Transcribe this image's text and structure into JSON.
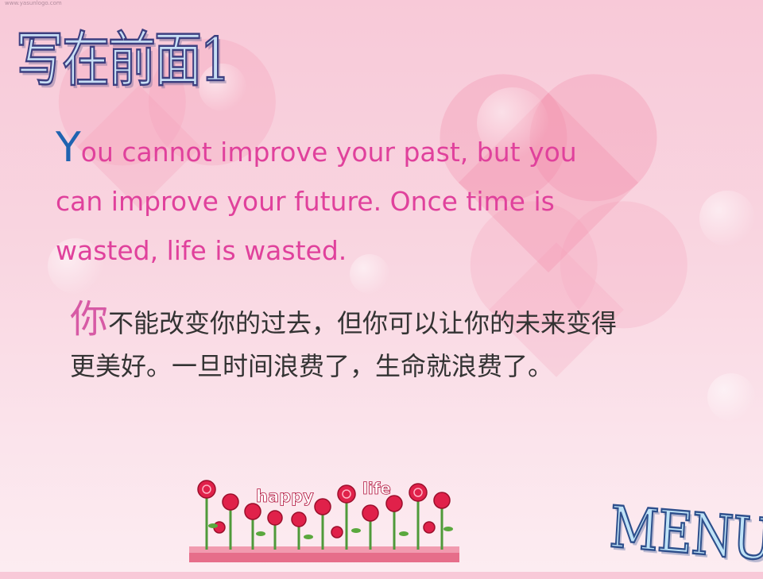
{
  "watermark": "www.yasunlogo.com",
  "title": "写在前面1",
  "quote_en": {
    "initial": "Y",
    "rest": "ou cannot improve your past, but you can improve your future. Once time is wasted, life is wasted."
  },
  "quote_zh": {
    "initial": "你",
    "rest": "不能改变你的过去，但你可以让你的未来变得更美好。一旦时间浪费了，生命就浪费了。"
  },
  "decoration": {
    "word_1": "happy",
    "word_2": "life"
  },
  "menu_label": "MENU",
  "colors": {
    "quote_en_text": "#e0419c",
    "quote_en_initial": "#1f63b0",
    "quote_zh_text": "#333333",
    "quote_zh_initial": "#d75aa5",
    "title_fill": "#c7dff5",
    "menu_fill": "#bfe3f7"
  }
}
